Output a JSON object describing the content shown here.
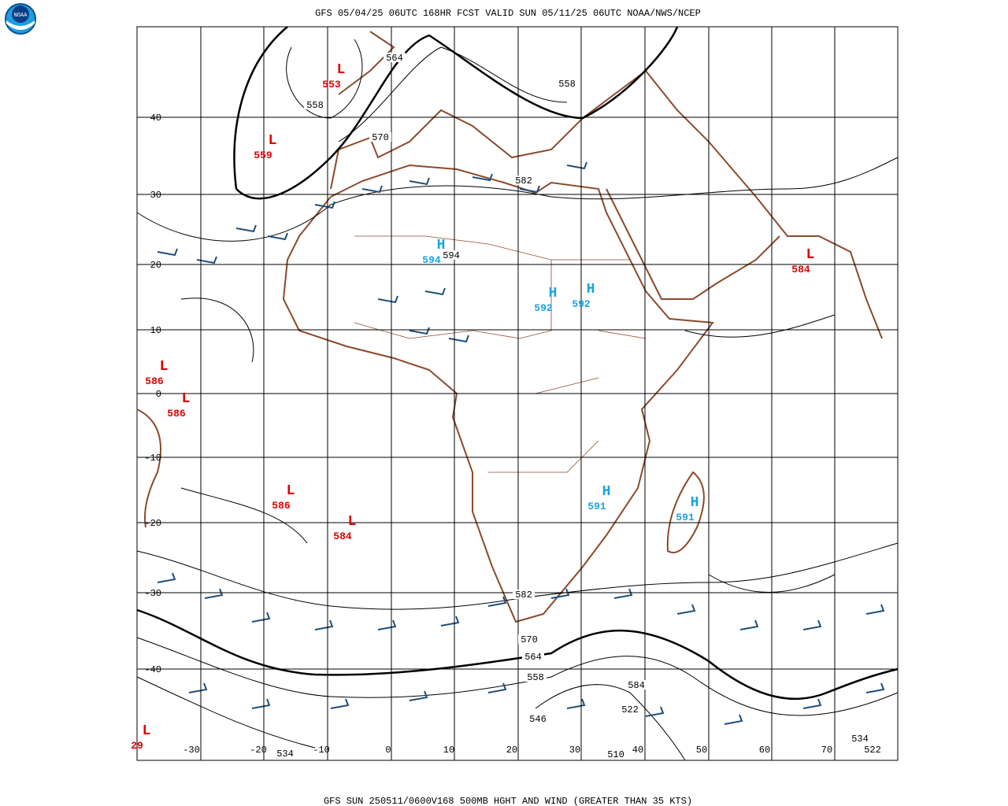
{
  "header": {
    "logo": "NOAA",
    "title": "GFS 05/04/25 06UTC 168HR FCST VALID SUN 05/11/25 06UTC NOAA/NWS/NCEP"
  },
  "footer": "GFS SUN 250511/0600V168 500MB HGHT AND WIND (GREATER THAN 35 KTS)",
  "lat_labels": [
    "40",
    "30",
    "20",
    "10",
    "0",
    "-10",
    "-20",
    "-30",
    "-40"
  ],
  "lon_labels": [
    "-30",
    "-20",
    "-10",
    "0",
    "10",
    "20",
    "30",
    "40",
    "50",
    "60",
    "70"
  ],
  "pressure_centers": [
    {
      "kind": "L",
      "value": "553"
    },
    {
      "kind": "L",
      "value": "559"
    },
    {
      "kind": "H",
      "value": "594"
    },
    {
      "kind": "H",
      "value": "592"
    },
    {
      "kind": "H",
      "value": "592"
    },
    {
      "kind": "L",
      "value": "584"
    },
    {
      "kind": "L",
      "value": "586"
    },
    {
      "kind": "L",
      "value": "586"
    },
    {
      "kind": "L",
      "value": "586"
    },
    {
      "kind": "L",
      "value": "584"
    },
    {
      "kind": "H",
      "value": "591"
    },
    {
      "kind": "H",
      "value": "591"
    },
    {
      "kind": "L",
      "value": "29"
    }
  ],
  "contour_labels": [
    "564",
    "558",
    "558",
    "570",
    "582",
    "594",
    "582",
    "570",
    "564",
    "558",
    "584",
    "522",
    "546",
    "510",
    "534",
    "534",
    "522"
  ]
}
